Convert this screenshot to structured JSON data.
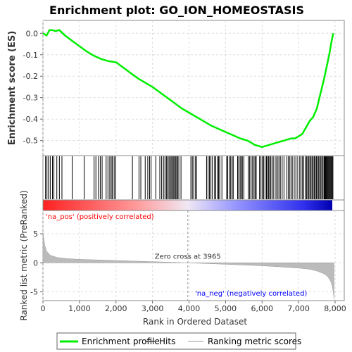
{
  "chart_data": {
    "type": "line",
    "title": "Enrichment plot: GO_ION_HOMEOSTASIS",
    "xlabel": "Rank in Ordered Dataset",
    "ylabel_top": "Enrichment score (ES)",
    "ylabel_bottom": "Ranked list metric (PreRanked)",
    "xlim": [
      0,
      8250
    ],
    "x_ticks": [
      0,
      1000,
      2000,
      3000,
      4000,
      5000,
      6000,
      7000,
      8000
    ],
    "x_tick_labels": [
      "0",
      "1,000",
      "2,000",
      "3,000",
      "4,000",
      "5,000",
      "6,000",
      "7,000",
      "8,000"
    ],
    "es_ylim": [
      -0.57,
      0.06
    ],
    "es_ticks": [
      0.0,
      -0.1,
      -0.2,
      -0.3,
      -0.4,
      -0.5
    ],
    "es_tick_labels": [
      "0.0",
      "-0.1",
      "-0.2",
      "-0.3",
      "-0.4",
      "-0.5"
    ],
    "metric_ylim": [
      -6.5,
      9
    ],
    "metric_ticks": [
      5,
      0,
      -5
    ],
    "metric_tick_labels": [
      "5",
      "0",
      "-5"
    ],
    "series": [
      {
        "name": "Enrichment profile",
        "color": "#00ee00",
        "x": [
          0,
          100,
          180,
          250,
          350,
          450,
          600,
          800,
          1000,
          1200,
          1400,
          1600,
          1800,
          2000,
          2200,
          2400,
          2600,
          2800,
          3000,
          3200,
          3400,
          3600,
          3800,
          4000,
          4200,
          4400,
          4600,
          4800,
          5000,
          5200,
          5400,
          5600,
          5700,
          5800,
          5900,
          6000,
          6100,
          6200,
          6300,
          6400,
          6500,
          6600,
          6700,
          6800,
          6900,
          7000,
          7100,
          7200,
          7300,
          7400,
          7500,
          7600,
          7700,
          7750,
          7800,
          7850,
          7900,
          7950
        ],
        "values": [
          0.0,
          -0.01,
          0.015,
          0.015,
          0.01,
          0.015,
          -0.01,
          -0.035,
          -0.06,
          -0.085,
          -0.105,
          -0.12,
          -0.13,
          -0.135,
          -0.16,
          -0.185,
          -0.21,
          -0.23,
          -0.25,
          -0.275,
          -0.3,
          -0.325,
          -0.35,
          -0.37,
          -0.39,
          -0.41,
          -0.43,
          -0.445,
          -0.46,
          -0.475,
          -0.49,
          -0.5,
          -0.51,
          -0.52,
          -0.525,
          -0.53,
          -0.525,
          -0.52,
          -0.515,
          -0.51,
          -0.505,
          -0.5,
          -0.495,
          -0.49,
          -0.49,
          -0.48,
          -0.47,
          -0.44,
          -0.41,
          -0.39,
          -0.35,
          -0.28,
          -0.21,
          -0.17,
          -0.13,
          -0.09,
          -0.04,
          0.0
        ]
      }
    ],
    "hits": [
      70,
      110,
      150,
      200,
      260,
      300,
      380,
      450,
      520,
      800,
      1130,
      1400,
      1450,
      1520,
      1570,
      1620,
      1730,
      1780,
      1830,
      1870,
      1900,
      1950,
      1990,
      2450,
      2630,
      2680,
      2800,
      2870,
      2920,
      2960,
      3090,
      3200,
      3250,
      3300,
      3340,
      3380,
      3410,
      3450,
      3480,
      3510,
      3540,
      3570,
      3600,
      3630,
      3660,
      3690,
      3720,
      3780,
      4050,
      4090,
      4130,
      4180,
      4200,
      4480,
      4520,
      4560,
      4600,
      4640,
      4700,
      4730,
      4780,
      4810,
      4840,
      4900,
      5030,
      5060,
      5100,
      5140,
      5180,
      5210,
      5330,
      5360,
      5400,
      5430,
      5460,
      5500,
      5620,
      5660,
      5700,
      5740,
      5780,
      5810,
      5840,
      5930,
      5970,
      6010,
      6040,
      6080,
      6120,
      6150,
      6180,
      6210,
      6240,
      6280,
      6320,
      6380,
      6420,
      6460,
      6500,
      6550,
      6600,
      6680,
      6720,
      6760,
      6800,
      6840,
      6900,
      6960,
      7020,
      7060,
      7100,
      7140,
      7180,
      7220,
      7250,
      7280,
      7310,
      7340,
      7370,
      7400,
      7430,
      7460,
      7490,
      7520,
      7550,
      7580,
      7610,
      7640,
      7670,
      7700,
      7720,
      7740,
      7760,
      7780,
      7800,
      7820,
      7840,
      7860,
      7880,
      7900,
      7920,
      7940
    ],
    "metric": {
      "x": [
        0,
        50,
        100,
        200,
        400,
        700,
        1000,
        2000,
        3000,
        3965,
        5000,
        6000,
        6500,
        7000,
        7300,
        7500,
        7700,
        7800,
        7880,
        7920,
        7950,
        7970
      ],
      "values": [
        5.2,
        3.0,
        2.0,
        1.3,
        0.9,
        0.7,
        0.6,
        0.4,
        0.2,
        0.0,
        -0.25,
        -0.5,
        -0.7,
        -0.9,
        -1.1,
        -1.4,
        -1.9,
        -2.4,
        -3.2,
        -4.0,
        -5.0,
        -6.2
      ]
    },
    "zero_cross_label": "Zero cross at 3965",
    "zero_cross_x": 3965,
    "pos_label": "'na_pos' (positively correlated)",
    "neg_label": "'na_neg' (negatively correlated)",
    "pos_color": "#ff0000",
    "neg_color": "#0000ff",
    "legend": [
      "Enrichment profile",
      "Hits",
      "Ranking metric scores"
    ],
    "legend_placement": "bottom",
    "grid": true
  }
}
